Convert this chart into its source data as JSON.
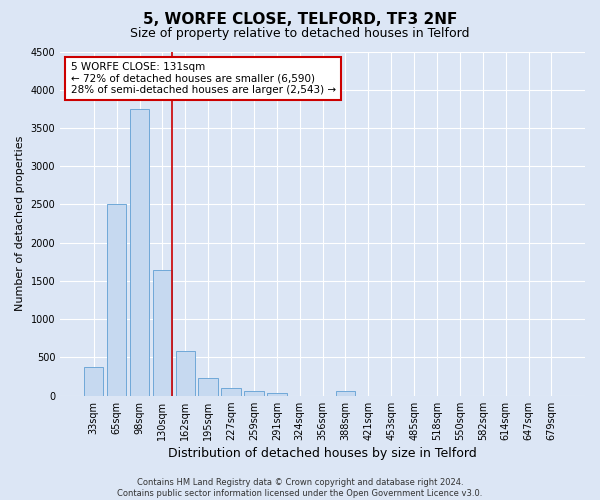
{
  "title": "5, WORFE CLOSE, TELFORD, TF3 2NF",
  "subtitle": "Size of property relative to detached houses in Telford",
  "xlabel": "Distribution of detached houses by size in Telford",
  "ylabel": "Number of detached properties",
  "footer_line1": "Contains HM Land Registry data © Crown copyright and database right 2024.",
  "footer_line2": "Contains public sector information licensed under the Open Government Licence v3.0.",
  "categories": [
    "33sqm",
    "65sqm",
    "98sqm",
    "130sqm",
    "162sqm",
    "195sqm",
    "227sqm",
    "259sqm",
    "291sqm",
    "324sqm",
    "356sqm",
    "388sqm",
    "421sqm",
    "453sqm",
    "485sqm",
    "518sqm",
    "550sqm",
    "582sqm",
    "614sqm",
    "647sqm",
    "679sqm"
  ],
  "values": [
    370,
    2500,
    3750,
    1640,
    590,
    230,
    105,
    60,
    35,
    0,
    0,
    60,
    0,
    0,
    0,
    0,
    0,
    0,
    0,
    0,
    0
  ],
  "bar_color": "#c6d9f0",
  "bar_edgecolor": "#6fa8d8",
  "vline_color": "#cc0000",
  "annotation_line1": "5 WORFE CLOSE: 131sqm",
  "annotation_line2": "← 72% of detached houses are smaller (6,590)",
  "annotation_line3": "28% of semi-detached houses are larger (2,543) →",
  "annotation_box_color": "#ffffff",
  "annotation_box_edgecolor": "#cc0000",
  "ylim": [
    0,
    4500
  ],
  "yticks": [
    0,
    500,
    1000,
    1500,
    2000,
    2500,
    3000,
    3500,
    4000,
    4500
  ],
  "background_color": "#dce6f5",
  "plot_background_color": "#dce6f5",
  "grid_color": "#ffffff",
  "title_fontsize": 11,
  "subtitle_fontsize": 9,
  "tick_fontsize": 7,
  "ylabel_fontsize": 8,
  "xlabel_fontsize": 9,
  "annotation_fontsize": 7.5,
  "footer_fontsize": 6
}
